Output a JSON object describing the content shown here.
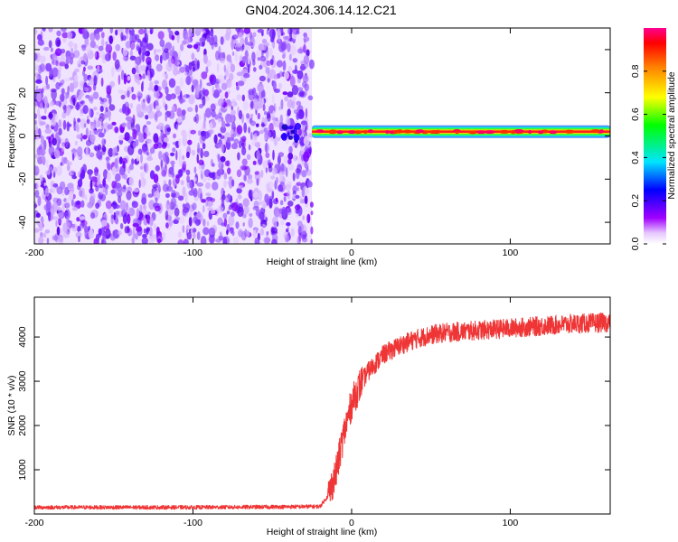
{
  "title": "GN04.2024.306.14.12.C21",
  "chart_data": [
    {
      "type": "heatmap",
      "xlabel": "Height of straight line (km)",
      "ylabel": "Frequency (Hz)",
      "xlim": [
        -200,
        163
      ],
      "ylim": [
        -50,
        50
      ],
      "xticks": [
        -200,
        -100,
        0,
        100
      ],
      "yticks": [
        -40,
        -20,
        0,
        20,
        40
      ],
      "colorbar": {
        "label": "Normalized spectral amplitude",
        "range": [
          0,
          1
        ],
        "ticks": [
          0.0,
          0.2,
          0.4,
          0.6,
          0.8
        ]
      },
      "features": {
        "noise_region_x": [
          -200,
          -25
        ],
        "signal_start_x": -25,
        "signal_end_x": 163,
        "signal_frequency": 2
      }
    },
    {
      "type": "line",
      "xlabel": "Height of straight line (km)",
      "ylabel": "SNR (10 * v/v)",
      "xlim": [
        -200,
        163
      ],
      "ylim": [
        0,
        4900
      ],
      "xticks": [
        -200,
        -100,
        0,
        100
      ],
      "yticks": [
        1000,
        2000,
        3000,
        4000
      ],
      "line_color": "#ef3535",
      "series": [
        {
          "x": [
            -200,
            -150,
            -100,
            -50,
            -20,
            -15,
            -10,
            -5,
            0,
            5,
            10,
            15,
            20,
            30,
            40,
            50,
            60,
            80,
            100,
            120,
            140,
            163
          ],
          "values": [
            150,
            150,
            150,
            160,
            170,
            400,
            900,
            1800,
            2500,
            2900,
            3200,
            3400,
            3600,
            3800,
            3950,
            4050,
            4100,
            4150,
            4200,
            4250,
            4300,
            4330
          ]
        }
      ]
    }
  ]
}
